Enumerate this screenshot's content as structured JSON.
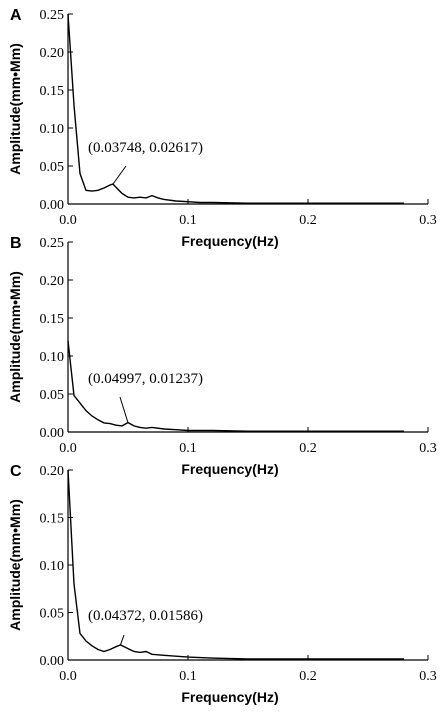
{
  "chart_data": [
    {
      "panel": "A",
      "type": "line",
      "xlabel": "Frequency(Hz)",
      "ylabel": "Amplitude(mm•Mm)",
      "xlim": [
        0.0,
        0.3
      ],
      "ylim": [
        0.0,
        0.25
      ],
      "xticks": [
        "0.0",
        "0.1",
        "0.2",
        "0.3"
      ],
      "yticks": [
        "0.00",
        "0.05",
        "0.10",
        "0.15",
        "0.20",
        "0.25"
      ],
      "annotation": {
        "text": "(0.03748, 0.02617)",
        "x": 0.03748,
        "y": 0.02617
      },
      "x": [
        0.0,
        0.005,
        0.01,
        0.015,
        0.02,
        0.025,
        0.03,
        0.035,
        0.03748,
        0.04,
        0.045,
        0.05,
        0.055,
        0.06,
        0.065,
        0.07,
        0.075,
        0.08,
        0.09,
        0.1,
        0.11,
        0.12,
        0.15,
        0.2,
        0.25,
        0.28
      ],
      "y": [
        0.25,
        0.13,
        0.04,
        0.018,
        0.017,
        0.018,
        0.021,
        0.025,
        0.02617,
        0.022,
        0.014,
        0.009,
        0.008,
        0.009,
        0.008,
        0.011,
        0.008,
        0.006,
        0.004,
        0.003,
        0.002,
        0.002,
        0.001,
        0.001,
        0.001,
        0.001
      ]
    },
    {
      "panel": "B",
      "type": "line",
      "xlabel": "Frequency(Hz)",
      "ylabel": "Amplitude(mm•Mm)",
      "xlim": [
        0.0,
        0.3
      ],
      "ylim": [
        0.0,
        0.25
      ],
      "xticks": [
        "0.0",
        "0.1",
        "0.2",
        "0.3"
      ],
      "yticks": [
        "0.00",
        "0.05",
        "0.10",
        "0.15",
        "0.20",
        "0.25"
      ],
      "annotation": {
        "text": "(0.04997, 0.01237)",
        "x": 0.04997,
        "y": 0.01237
      },
      "x": [
        0.0,
        0.005,
        0.01,
        0.015,
        0.02,
        0.025,
        0.03,
        0.035,
        0.04,
        0.045,
        0.04997,
        0.055,
        0.06,
        0.065,
        0.07,
        0.08,
        0.09,
        0.1,
        0.12,
        0.15,
        0.2,
        0.25,
        0.28
      ],
      "y": [
        0.12,
        0.048,
        0.038,
        0.028,
        0.021,
        0.016,
        0.012,
        0.011,
        0.009,
        0.008,
        0.01237,
        0.008,
        0.006,
        0.005,
        0.006,
        0.004,
        0.003,
        0.002,
        0.002,
        0.001,
        0.001,
        0.001,
        0.001
      ]
    },
    {
      "panel": "C",
      "type": "line",
      "xlabel": "Frequency(Hz)",
      "ylabel": "Amplitude(mm•Mm)",
      "xlim": [
        0.0,
        0.3
      ],
      "ylim": [
        0.0,
        0.2
      ],
      "xticks": [
        "0.0",
        "0.1",
        "0.2",
        "0.3"
      ],
      "yticks": [
        "0.00",
        "0.05",
        "0.10",
        "0.15",
        "0.20"
      ],
      "annotation": {
        "text": "(0.04372, 0.01586)",
        "x": 0.04372,
        "y": 0.01586
      },
      "x": [
        0.0,
        0.005,
        0.01,
        0.015,
        0.02,
        0.025,
        0.03,
        0.035,
        0.04,
        0.04372,
        0.05,
        0.055,
        0.06,
        0.065,
        0.07,
        0.08,
        0.09,
        0.1,
        0.12,
        0.15,
        0.2,
        0.25,
        0.28
      ],
      "y": [
        0.2,
        0.08,
        0.028,
        0.02,
        0.015,
        0.011,
        0.009,
        0.011,
        0.014,
        0.01586,
        0.012,
        0.009,
        0.008,
        0.009,
        0.006,
        0.005,
        0.004,
        0.003,
        0.002,
        0.001,
        0.001,
        0.001,
        0.001
      ]
    }
  ]
}
